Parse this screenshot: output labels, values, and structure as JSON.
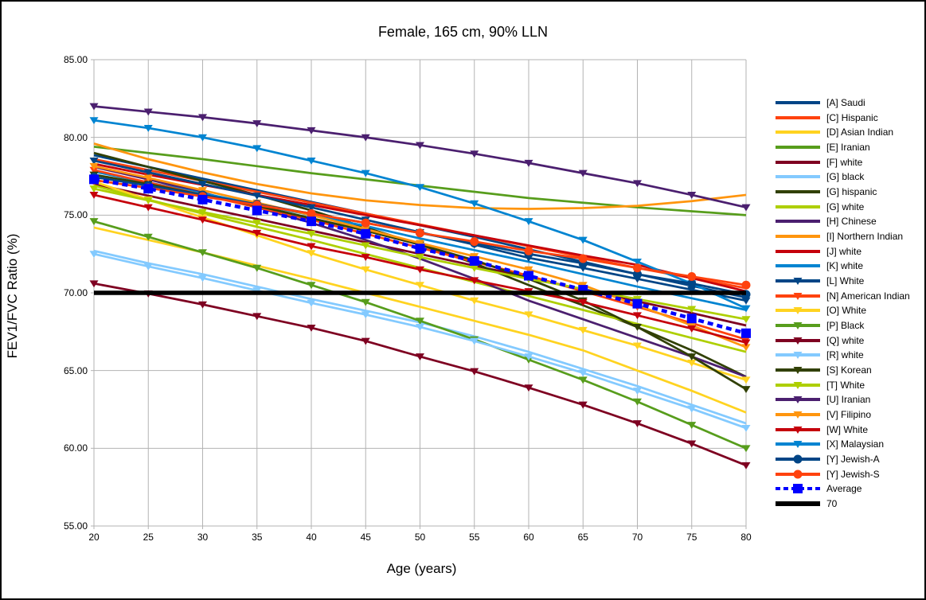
{
  "chart": {
    "title": "Female, 165 cm, 90% LLN",
    "x_axis_title": "Age (years)",
    "y_axis_title": "FEV1/FVC Ratio (%)"
  },
  "chart_data": {
    "type": "line",
    "title": "Female, 165 cm, 90% LLN",
    "xlabel": "Age (years)",
    "ylabel": "FEV1/FVC Ratio (%)",
    "xlim": [
      20,
      80
    ],
    "ylim": [
      55,
      85
    ],
    "grid": true,
    "legend_position": "right",
    "x": [
      20,
      25,
      30,
      35,
      40,
      45,
      50,
      55,
      60,
      65,
      70,
      75,
      80
    ],
    "x_tick_labels": [
      "20",
      "25",
      "30",
      "35",
      "40",
      "45",
      "50",
      "55",
      "60",
      "65",
      "70",
      "75",
      "80"
    ],
    "y_ticks": [
      85,
      80,
      75,
      70,
      65,
      60,
      55
    ],
    "y_tick_labels": [
      "85.00",
      "80.00",
      "75.00",
      "70.00",
      "65.00",
      "60.00",
      "55.00"
    ],
    "grid_color": "#b3b3b3",
    "series": [
      {
        "key": "a-saudi",
        "name": "[A] Saudi",
        "color": "#004586",
        "marker": "none",
        "dash": "none",
        "width": 2.75,
        "values": [
          78.85,
          78.1,
          77.35,
          76.6,
          75.85,
          75.1,
          74.35,
          73.6,
          72.8,
          72.0,
          71.2,
          70.45,
          69.7
        ]
      },
      {
        "key": "c-hispanic",
        "name": "[C] Hispanic",
        "color": "#ff420e",
        "marker": "none",
        "dash": "none",
        "width": 2.75,
        "values": [
          78.6,
          77.9,
          77.2,
          76.5,
          75.8,
          75.1,
          74.4,
          73.7,
          73.0,
          72.3,
          71.6,
          70.95,
          70.3
        ]
      },
      {
        "key": "d-asian-indian",
        "name": "[D] Asian Indian",
        "color": "#ffd320",
        "marker": "none",
        "dash": "none",
        "width": 2.75,
        "values": [
          74.2,
          73.4,
          72.6,
          71.75,
          70.9,
          70.0,
          69.1,
          68.2,
          67.3,
          66.3,
          65.0,
          63.7,
          62.3
        ]
      },
      {
        "key": "e-iranian",
        "name": "[E] Iranian",
        "color": "#579d1c",
        "marker": "none",
        "dash": "none",
        "width": 2.75,
        "values": [
          79.4,
          79.0,
          78.6,
          78.15,
          77.7,
          77.3,
          76.9,
          76.5,
          76.1,
          75.8,
          75.5,
          75.25,
          75.0
        ]
      },
      {
        "key": "f-white",
        "name": "[F] white",
        "color": "#7e0021",
        "marker": "none",
        "dash": "none",
        "width": 2.75,
        "values": [
          77.0,
          76.25,
          75.5,
          74.75,
          74.0,
          73.25,
          72.5,
          71.75,
          71.0,
          70.2,
          69.45,
          68.7,
          67.9
        ]
      },
      {
        "key": "g-black",
        "name": "[G] black",
        "color": "#83caff",
        "marker": "none",
        "dash": "none",
        "width": 2.75,
        "values": [
          72.7,
          71.9,
          71.2,
          70.4,
          69.6,
          68.85,
          68.1,
          67.2,
          66.2,
          65.1,
          64.0,
          62.8,
          61.6
        ]
      },
      {
        "key": "g-hispanic",
        "name": "[G] hispanic",
        "color": "#314004",
        "marker": "none",
        "dash": "none",
        "width": 2.75,
        "values": [
          79.0,
          78.1,
          77.2,
          76.3,
          75.3,
          74.2,
          73.1,
          71.9,
          70.5,
          69.2,
          67.8,
          66.3,
          64.6
        ]
      },
      {
        "key": "g-white",
        "name": "[G] white",
        "color": "#aecf00",
        "marker": "none",
        "dash": "none",
        "width": 2.75,
        "values": [
          76.9,
          76.0,
          75.1,
          74.25,
          73.4,
          72.5,
          71.6,
          70.7,
          69.8,
          68.9,
          68.0,
          67.1,
          66.2
        ]
      },
      {
        "key": "h-chinese",
        "name": "[H] Chinese",
        "color": "#4b1f6f",
        "marker": "none",
        "dash": "none",
        "width": 2.75,
        "values": [
          78.1,
          77.3,
          76.45,
          75.5,
          74.5,
          73.4,
          72.2,
          70.9,
          69.5,
          68.3,
          67.1,
          65.9,
          64.6
        ]
      },
      {
        "key": "i-northern-indian",
        "name": "[I] Northern Indian",
        "color": "#ff950e",
        "marker": "none",
        "dash": "none",
        "width": 2.75,
        "values": [
          79.6,
          78.6,
          77.75,
          77.0,
          76.4,
          75.95,
          75.65,
          75.45,
          75.4,
          75.45,
          75.6,
          75.9,
          76.3
        ]
      },
      {
        "key": "j-white",
        "name": "[J] white",
        "color": "#c5000b",
        "marker": "none",
        "dash": "none",
        "width": 2.75,
        "values": [
          78.3,
          77.6,
          76.95,
          76.3,
          75.65,
          75.0,
          74.35,
          73.7,
          73.05,
          72.4,
          71.8,
          70.95,
          70.1
        ]
      },
      {
        "key": "k-white",
        "name": "[K] white",
        "color": "#0084d1",
        "marker": "none",
        "dash": "none",
        "width": 2.75,
        "values": [
          77.8,
          77.1,
          76.4,
          75.7,
          75.0,
          74.3,
          73.5,
          72.75,
          72.0,
          71.2,
          70.4,
          69.65,
          68.9
        ]
      },
      {
        "key": "l-white",
        "name": "[L] White",
        "color": "#004586",
        "marker": "triangle",
        "dash": "none",
        "width": 2.75,
        "values": [
          78.5,
          77.75,
          77.0,
          76.25,
          75.5,
          74.7,
          73.9,
          73.1,
          72.25,
          71.6,
          70.9,
          70.2,
          69.5
        ]
      },
      {
        "key": "n-american-indian",
        "name": "[N] American Indian",
        "color": "#ff420e",
        "marker": "triangle",
        "dash": "none",
        "width": 2.75,
        "values": [
          77.9,
          77.1,
          76.3,
          75.5,
          74.7,
          73.8,
          72.9,
          72.0,
          71.1,
          70.1,
          69.1,
          68.05,
          67.0
        ]
      },
      {
        "key": "o-white",
        "name": "[O] White",
        "color": "#ffd320",
        "marker": "triangle",
        "dash": "none",
        "width": 2.75,
        "values": [
          77.15,
          76.0,
          74.85,
          73.7,
          72.55,
          71.5,
          70.5,
          69.5,
          68.6,
          67.6,
          66.6,
          65.5,
          64.4
        ]
      },
      {
        "key": "p-black",
        "name": "[P] Black",
        "color": "#579d1c",
        "marker": "triangle",
        "dash": "none",
        "width": 2.75,
        "values": [
          74.6,
          73.6,
          72.6,
          71.6,
          70.5,
          69.4,
          68.2,
          67.0,
          65.7,
          64.4,
          63.0,
          61.5,
          60.0
        ]
      },
      {
        "key": "q-white",
        "name": "[Q] white",
        "color": "#7e0021",
        "marker": "triangle",
        "dash": "none",
        "width": 2.75,
        "values": [
          70.6,
          69.95,
          69.25,
          68.5,
          67.75,
          66.9,
          65.9,
          64.95,
          63.9,
          62.8,
          61.6,
          60.3,
          58.9
        ]
      },
      {
        "key": "r-white",
        "name": "[R] white",
        "color": "#83caff",
        "marker": "triangle",
        "dash": "none",
        "width": 2.75,
        "values": [
          72.5,
          71.7,
          70.95,
          70.15,
          69.35,
          68.6,
          67.8,
          66.9,
          65.9,
          64.85,
          63.7,
          62.55,
          61.3
        ]
      },
      {
        "key": "s-korean",
        "name": "[S] Korean",
        "color": "#314004",
        "marker": "triangle",
        "dash": "none",
        "width": 2.75,
        "values": [
          77.6,
          77.0,
          76.3,
          75.6,
          74.8,
          74.0,
          73.1,
          72.1,
          70.9,
          69.5,
          67.8,
          65.9,
          63.8
        ]
      },
      {
        "key": "t-white",
        "name": "[T] White",
        "color": "#aecf00",
        "marker": "triangle",
        "dash": "none",
        "width": 2.75,
        "values": [
          76.7,
          75.95,
          75.2,
          74.5,
          73.8,
          73.05,
          72.3,
          71.6,
          70.9,
          70.25,
          69.6,
          68.95,
          68.3
        ]
      },
      {
        "key": "u-iranian",
        "name": "[U] Iranian",
        "color": "#4b1f6f",
        "marker": "triangle",
        "dash": "none",
        "width": 2.75,
        "values": [
          82.0,
          81.65,
          81.3,
          80.9,
          80.45,
          80.0,
          79.5,
          78.95,
          78.35,
          77.7,
          77.05,
          76.3,
          75.5
        ]
      },
      {
        "key": "v-filipino",
        "name": "[V] Filipino",
        "color": "#ff950e",
        "marker": "triangle",
        "dash": "none",
        "width": 2.75,
        "values": [
          78.15,
          77.4,
          76.6,
          75.8,
          75.0,
          74.1,
          73.2,
          72.35,
          71.5,
          70.5,
          69.2,
          67.9,
          66.5
        ]
      },
      {
        "key": "w-white",
        "name": "[W] White",
        "color": "#c5000b",
        "marker": "triangle",
        "dash": "none",
        "width": 2.75,
        "values": [
          76.3,
          75.5,
          74.7,
          73.85,
          73.0,
          72.3,
          71.5,
          70.8,
          70.1,
          69.4,
          68.55,
          67.7,
          66.8
        ]
      },
      {
        "key": "x-malaysian",
        "name": "[X] Malaysian",
        "color": "#0084d1",
        "marker": "triangle",
        "dash": "none",
        "width": 2.75,
        "values": [
          81.1,
          80.6,
          80.0,
          79.3,
          78.5,
          77.7,
          76.8,
          75.75,
          74.6,
          73.4,
          72.0,
          70.6,
          69.0
        ]
      },
      {
        "key": "y-jewish-a",
        "name": "[Y] Jewish-A",
        "color": "#004586",
        "marker": "circle",
        "dash": "none",
        "width": 2.75,
        "values": [
          77.45,
          76.9,
          76.3,
          75.7,
          75.1,
          74.5,
          73.85,
          73.2,
          72.5,
          71.9,
          71.2,
          70.6,
          69.9
        ]
      },
      {
        "key": "y-jewish-s",
        "name": "[Y] Jewish-S",
        "color": "#ff420e",
        "marker": "circle",
        "dash": "none",
        "width": 2.75,
        "values": [
          77.25,
          76.75,
          76.2,
          75.65,
          75.1,
          74.5,
          73.85,
          73.3,
          72.7,
          72.2,
          71.6,
          71.05,
          70.5
        ]
      },
      {
        "key": "average",
        "name": "Average",
        "color": "#0000ff",
        "marker": "square",
        "dash": "dashed",
        "width": 4.5,
        "values": [
          77.3,
          76.7,
          76.0,
          75.3,
          74.6,
          73.8,
          72.85,
          72.05,
          71.1,
          70.2,
          69.3,
          68.35,
          67.4
        ]
      },
      {
        "key": "seventy",
        "name": "70",
        "color": "#000000",
        "marker": "none",
        "dash": "none",
        "width": 5.5,
        "values": [
          70,
          70,
          70,
          70,
          70,
          70,
          70,
          70,
          70,
          70,
          70,
          70,
          70
        ]
      }
    ]
  }
}
